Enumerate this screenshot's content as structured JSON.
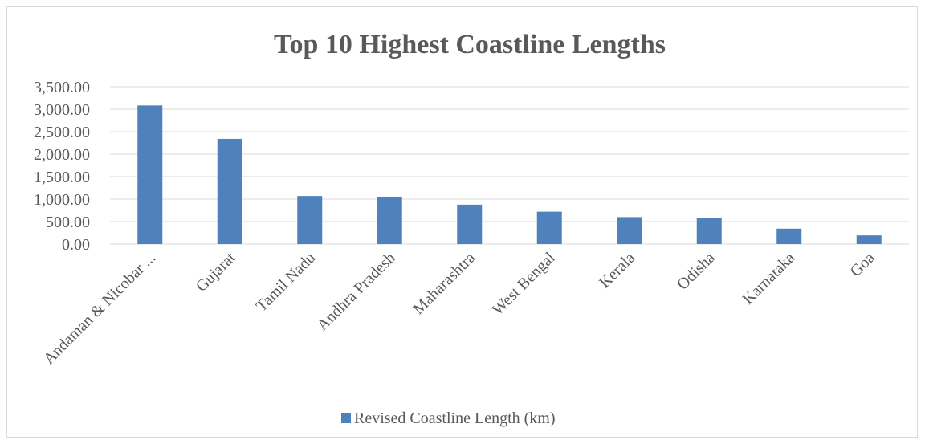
{
  "chart_data": {
    "type": "bar",
    "title": "Top 10 Highest Coastline Lengths",
    "categories": [
      "Andaman & Nicobar ...",
      "Gujarat",
      "Tamil Nadu",
      "Andhra Pradesh",
      "Maharashtra",
      "West Bengal",
      "Kerala",
      "Odisha",
      "Karnataka",
      "Goa"
    ],
    "series": [
      {
        "name": "Revised Coastline Length (km)",
        "color": "#4f81bd",
        "values": [
          3083,
          2340,
          1069,
          1054,
          877,
          721,
          600,
          575,
          343,
          193
        ]
      }
    ],
    "yticks": [
      "0.00",
      "500.00",
      "1,000.00",
      "1,500.00",
      "2,000.00",
      "2,500.00",
      "3,000.00",
      "3,500.00"
    ],
    "ylim": [
      0,
      3500
    ],
    "grid": true,
    "legend_position": "bottom"
  }
}
